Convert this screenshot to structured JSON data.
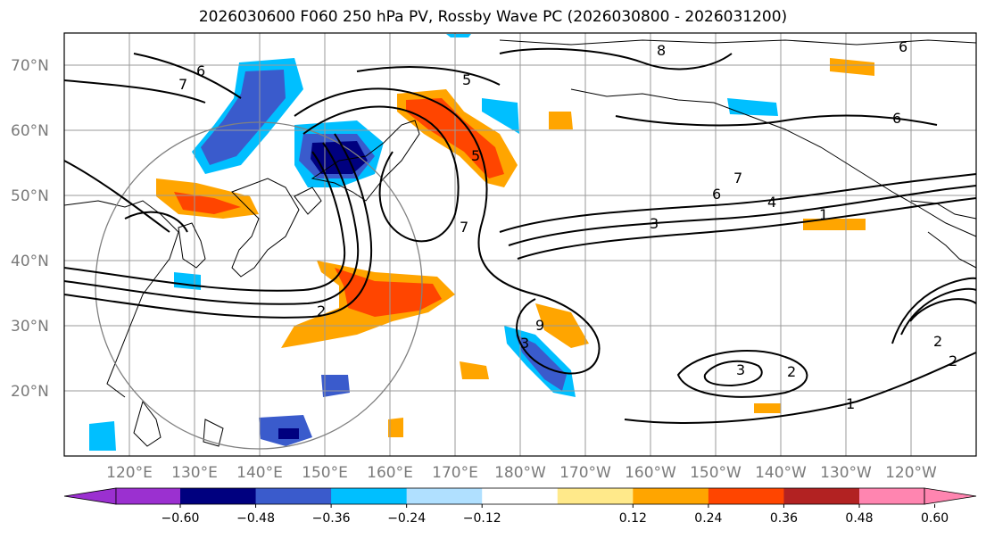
{
  "title": "2026030600 F060 250 hPa PV, Rossby Wave PC (2026030800 - 2026031200)",
  "lat_labels": [
    "70°N",
    "60°N",
    "50°N",
    "40°N",
    "30°N",
    "20°N"
  ],
  "lon_labels": [
    "120°E",
    "130°E",
    "140°E",
    "150°E",
    "160°E",
    "170°E",
    "180°W",
    "170°W",
    "160°W",
    "150°W",
    "140°W",
    "130°W",
    "120°W"
  ],
  "colorbar": {
    "ticks": [
      "−0.60",
      "−0.48",
      "−0.36",
      "−0.24",
      "−0.12",
      "0.12",
      "0.24",
      "0.36",
      "0.48",
      "0.60"
    ],
    "colors": [
      "#9b30d0",
      "#00007f",
      "#3a5bcc",
      "#00bfff",
      "#b0e0ff",
      "#ffffff",
      "#ffe98a",
      "#ffa500",
      "#ff4500",
      "#b22222",
      "#ff85b0"
    ]
  },
  "contour_labels": [
    "6",
    "7",
    "5",
    "8",
    "6",
    "3",
    "5",
    "7",
    "7",
    "6",
    "4",
    "1",
    "3",
    "2",
    "2",
    "9",
    "3",
    "2",
    "1",
    "2",
    "6"
  ],
  "colors": {
    "contour": "#000000",
    "grid": "#9a9a9a",
    "coast": "#000000",
    "circle": "#808080"
  }
}
